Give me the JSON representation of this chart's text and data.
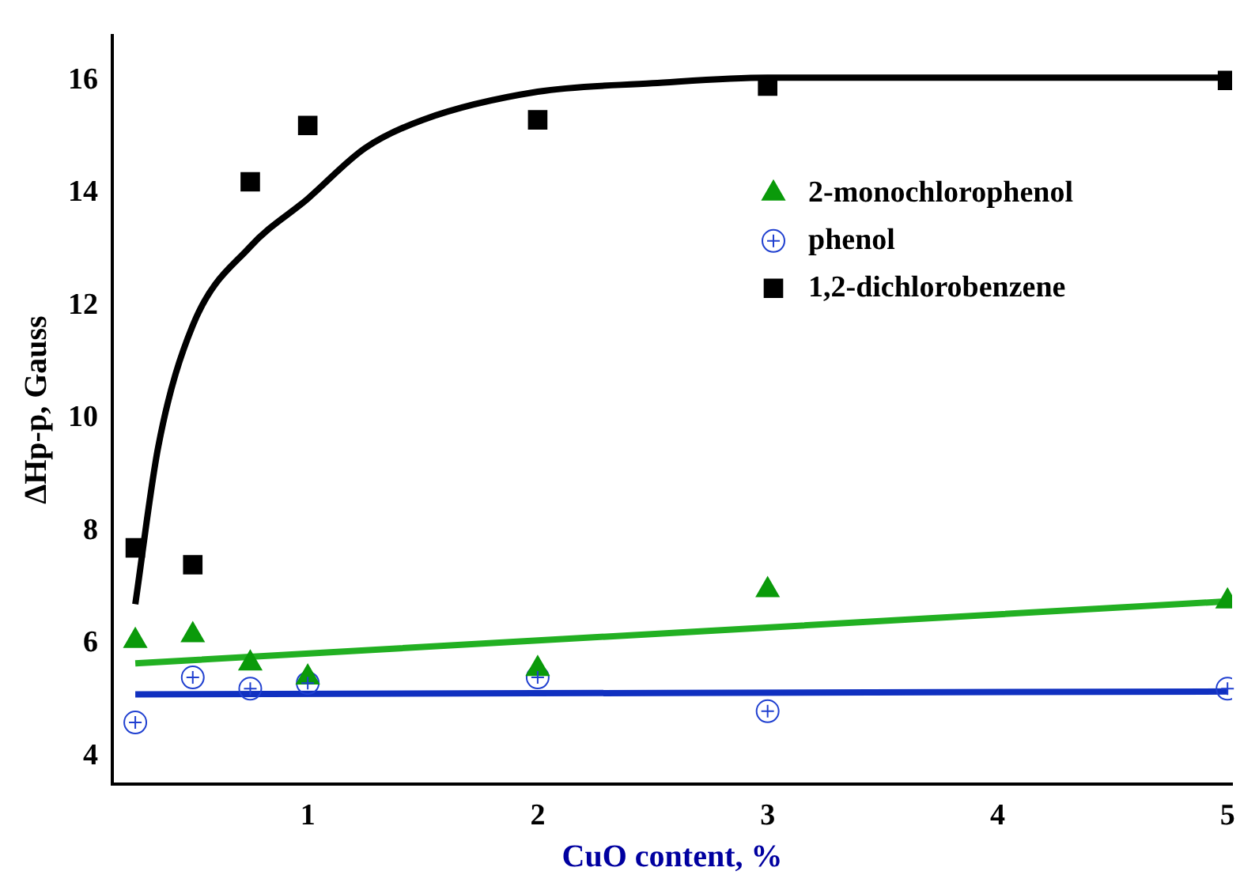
{
  "chart_data": {
    "type": "scatter",
    "xlabel": "CuO content, %",
    "ylabel": "ΔHp-p, Gauss",
    "xlim": [
      0.15,
      5.02
    ],
    "ylim": [
      3.5,
      16.8
    ],
    "xticks": [
      1,
      2,
      3,
      4,
      5
    ],
    "yticks": [
      4,
      6,
      8,
      10,
      12,
      14,
      16
    ],
    "grid": false,
    "legend": "top right",
    "series": [
      {
        "name": "2-monochlorophenol",
        "marker": "triangle",
        "color": "#0a9a0a",
        "x": [
          0.25,
          0.5,
          0.75,
          1,
          2,
          3,
          5
        ],
        "values": [
          6.05,
          6.15,
          5.65,
          5.4,
          5.55,
          6.95,
          6.75
        ]
      },
      {
        "name": "phenol",
        "marker": "circle",
        "color": "#2040d0",
        "x": [
          0.25,
          0.5,
          0.75,
          1,
          2,
          3,
          5
        ],
        "values": [
          4.6,
          5.4,
          5.2,
          5.3,
          5.4,
          4.8,
          5.2
        ]
      },
      {
        "name": "1,2-dichlorobenzene",
        "marker": "square",
        "color": "#000000",
        "x": [
          0.25,
          0.5,
          0.75,
          1,
          2,
          3,
          5
        ],
        "values": [
          7.7,
          7.4,
          14.2,
          15.2,
          15.3,
          15.9,
          16.0
        ]
      },
      {
        "type": "line",
        "color": "#000000",
        "x": [
          0.25,
          0.35,
          0.5,
          0.75,
          1,
          1.25,
          1.5,
          2,
          2.5,
          3,
          4,
          5
        ],
        "values": [
          6.7,
          9.5,
          11.65,
          13.05,
          13.9,
          14.8,
          15.3,
          15.8,
          15.95,
          16.05,
          16.05,
          16.05
        ]
      },
      {
        "type": "line",
        "color": "#22b022",
        "x": [
          0.25,
          5
        ],
        "values": [
          5.65,
          6.75
        ]
      },
      {
        "type": "line",
        "color": "#1030c0",
        "x": [
          0.25,
          5
        ],
        "values": [
          5.1,
          5.15
        ]
      }
    ]
  }
}
